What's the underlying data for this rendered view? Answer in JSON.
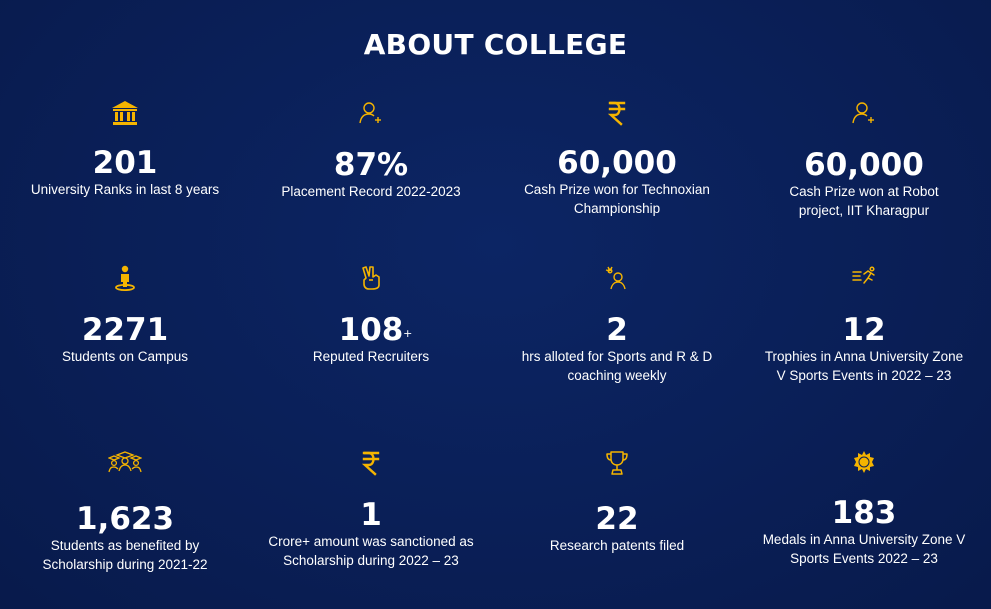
{
  "title": "ABOUT COLLEGE",
  "accent_color": "#f5b400",
  "stats": [
    {
      "icon": "university-icon",
      "number": "201",
      "suffix": "",
      "text": "University Ranks in last 8 years"
    },
    {
      "icon": "user-add-icon",
      "number": "87%",
      "suffix": "",
      "text": "Placement Record 2022-2023"
    },
    {
      "icon": "rupee-icon",
      "number": "60,000",
      "suffix": "",
      "text": "Cash Prize won for Technoxian Championship"
    },
    {
      "icon": "user-add-icon",
      "number": "60,000",
      "suffix": "",
      "text": "Cash Prize won at Robot project, IIT Kharagpur"
    },
    {
      "icon": "student-icon",
      "number": "2271",
      "suffix": "",
      "text": "Students on Campus"
    },
    {
      "icon": "victory-hand-icon",
      "number": "108",
      "suffix": "+",
      "text": "Reputed Recruiters"
    },
    {
      "icon": "sports-coach-icon",
      "number": "2",
      "suffix": "",
      "text": "hrs alloted for Sports and R & D coaching weekly"
    },
    {
      "icon": "running-icon",
      "number": "12",
      "suffix": "",
      "text": "Trophies in Anna University Zone V Sports Events in 2022 – 23"
    },
    {
      "icon": "graduates-icon",
      "number": "1,623",
      "suffix": "",
      "text": "Students as benefited by Scholarship during 2021-22"
    },
    {
      "icon": "rupee-icon",
      "number": "1",
      "suffix": "",
      "text": "Crore+ amount was sanctioned as Scholarship during 2022 – 23"
    },
    {
      "icon": "trophy-icon",
      "number": "22",
      "suffix": "",
      "text": "Research patents filed"
    },
    {
      "icon": "medal-icon",
      "number": "183",
      "suffix": "",
      "text": "Medals in Anna University Zone V Sports Events 2022 – 23"
    }
  ]
}
